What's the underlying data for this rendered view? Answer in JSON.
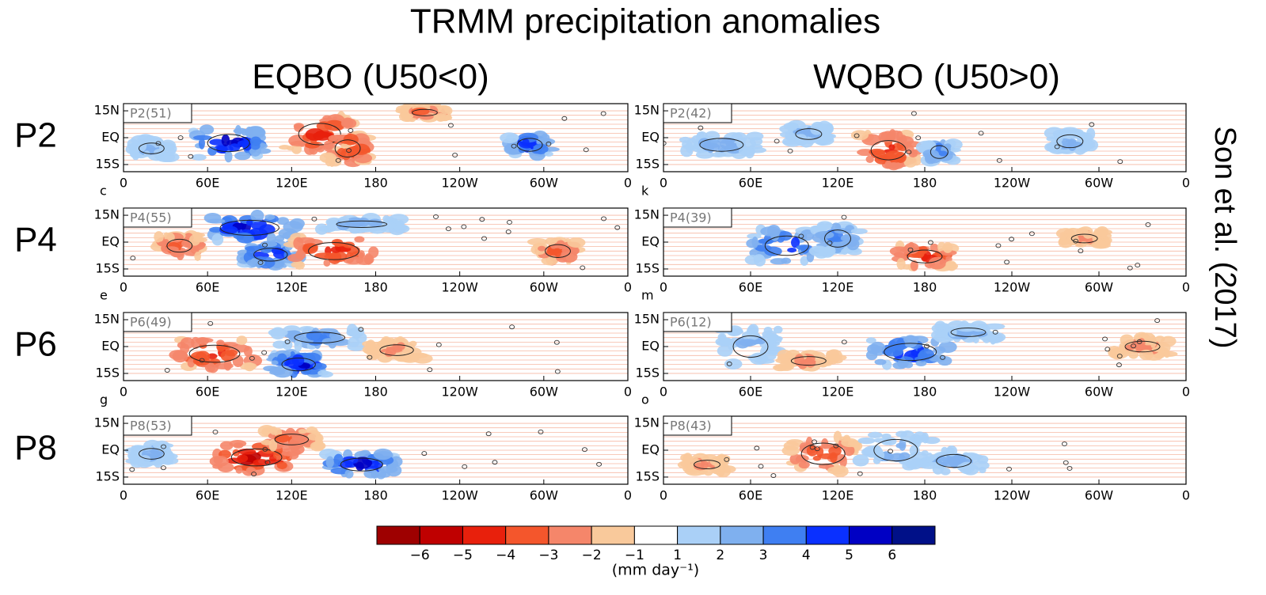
{
  "title": "TRMM precipitation anomalies",
  "columns": [
    "EQBO (U50<0)",
    "WQBO (U50>0)"
  ],
  "rows": [
    "P2",
    "P4",
    "P6",
    "P8"
  ],
  "side_note": "Son et al. (2017)",
  "panels": [
    {
      "label": "P2(51)",
      "letter": "c"
    },
    {
      "label": "P2(42)",
      "letter": "k"
    },
    {
      "label": "P4(55)",
      "letter": "e"
    },
    {
      "label": "P4(39)",
      "letter": "m"
    },
    {
      "label": "P6(49)",
      "letter": "g"
    },
    {
      "label": "P6(12)",
      "letter": "o"
    },
    {
      "label": "P8(53)",
      "letter": null
    },
    {
      "label": "P8(43)",
      "letter": null
    }
  ],
  "lat_labels": [
    "15N",
    "EQ",
    "15S"
  ],
  "lon_labels": [
    "0",
    "60E",
    "120E",
    "180",
    "120W",
    "60W",
    "0"
  ],
  "colorbar": {
    "colors": [
      "#9e0000",
      "#bf0000",
      "#e8200c",
      "#f4562c",
      "#f5866a",
      "#f9c99b",
      "#ffffff",
      "#aad0f7",
      "#7fb0ef",
      "#3f7ff2",
      "#0a30ff",
      "#0000c4",
      "#001088"
    ],
    "tick_labels": [
      "−6",
      "−5",
      "−4",
      "−3",
      "−2",
      "−1",
      "1",
      "2",
      "3",
      "4",
      "5",
      "6"
    ],
    "unit": "(mm day⁻¹)"
  }
}
